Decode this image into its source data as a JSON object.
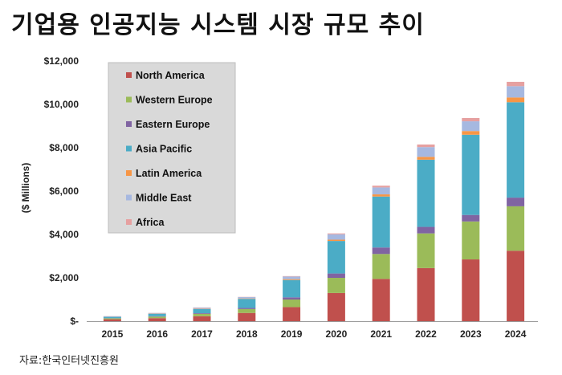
{
  "title": "기업용 인공지능 시스템 시장 규모 추이",
  "source": "자료:한국인터넷진흥원",
  "chart_data": {
    "type": "bar",
    "stacked": true,
    "title": "",
    "ylabel": "($ Millions)",
    "xlabel": "",
    "ylim": [
      0,
      12000
    ],
    "yticks": [
      0,
      2000,
      4000,
      6000,
      8000,
      10000,
      12000
    ],
    "ytick_labels": [
      "$-",
      "$2,000",
      "$4,000",
      "$6,000",
      "$8,000",
      "$10,000",
      "$12,000"
    ],
    "categories": [
      "2015",
      "2016",
      "2017",
      "2018",
      "2019",
      "2020",
      "2021",
      "2022",
      "2023",
      "2024"
    ],
    "legend_position": "top-left",
    "series": [
      {
        "name": "North America",
        "color": "#c0504d",
        "values": [
          90,
          140,
          230,
          380,
          650,
          1300,
          1950,
          2450,
          2850,
          3250
        ]
      },
      {
        "name": "Western Europe",
        "color": "#9bbb59",
        "values": [
          40,
          70,
          110,
          180,
          350,
          700,
          1150,
          1600,
          1750,
          2050
        ]
      },
      {
        "name": "Eastern Europe",
        "color": "#8064a2",
        "values": [
          10,
          20,
          30,
          50,
          100,
          200,
          300,
          300,
          300,
          400
        ]
      },
      {
        "name": "Asia Pacific",
        "color": "#4bacc6",
        "values": [
          60,
          110,
          190,
          420,
          800,
          1500,
          2350,
          3100,
          3700,
          4400
        ]
      },
      {
        "name": "Latin America",
        "color": "#f79646",
        "values": [
          5,
          10,
          15,
          20,
          40,
          60,
          100,
          130,
          170,
          220
        ]
      },
      {
        "name": "Middle East",
        "color": "#a6b8e0",
        "values": [
          25,
          30,
          50,
          60,
          120,
          250,
          320,
          450,
          450,
          520
        ]
      },
      {
        "name": "Africa",
        "color": "#e6a0a0",
        "values": [
          5,
          5,
          10,
          10,
          20,
          40,
          80,
          120,
          150,
          200
        ]
      }
    ]
  }
}
